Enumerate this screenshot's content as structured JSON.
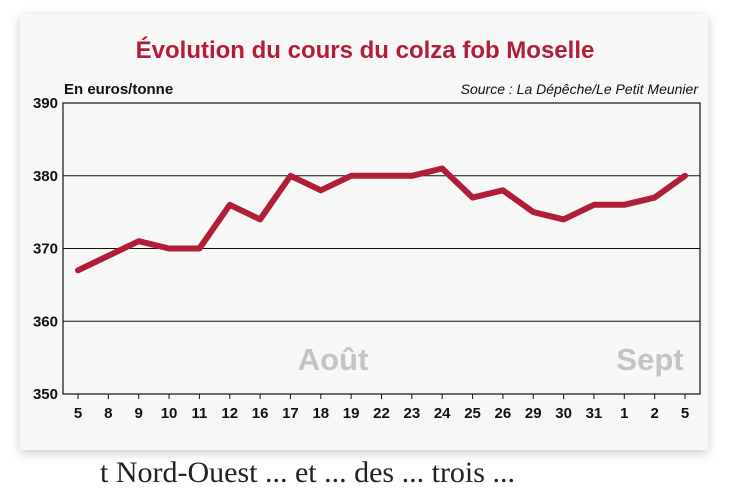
{
  "chart_data": {
    "type": "line",
    "title": "Évolution du cours du colza fob Moselle",
    "ylabel": "En euros/tonne",
    "source": "Source : La Dépêche/Le Petit Meunier",
    "categories": [
      "5",
      "8",
      "9",
      "10",
      "11",
      "12",
      "16",
      "17",
      "18",
      "19",
      "22",
      "23",
      "24",
      "25",
      "26",
      "29",
      "30",
      "31",
      "1",
      "2",
      "5"
    ],
    "values": [
      367,
      369,
      371,
      370,
      370,
      376,
      374,
      380,
      378,
      380,
      380,
      380,
      381,
      377,
      378,
      375,
      374,
      376,
      376,
      377,
      380
    ],
    "ylim": [
      350,
      390
    ],
    "yticks": [
      350,
      360,
      370,
      380,
      390
    ],
    "month_labels": [
      "Août",
      "Sept"
    ],
    "grid": true,
    "line_color": "#b01e3a"
  },
  "bottom_text": "t Nord-Ouest ... et ... des ... trois ..."
}
